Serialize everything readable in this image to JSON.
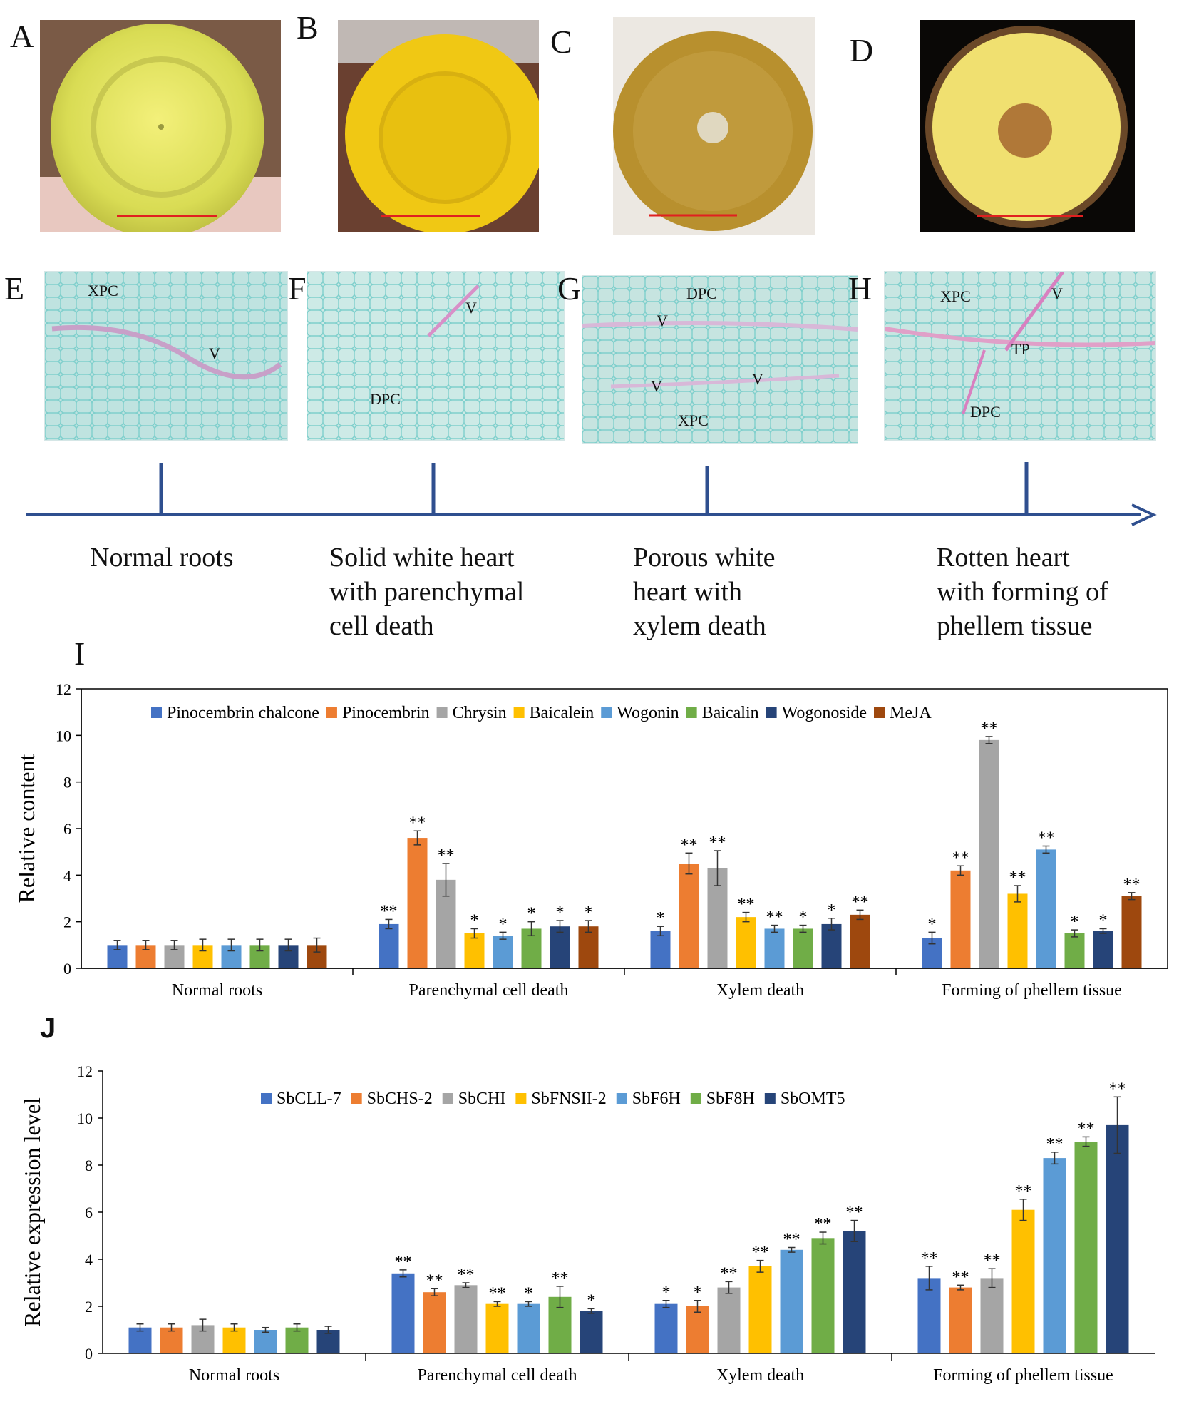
{
  "panels": {
    "photo_letters": [
      "A",
      "B",
      "C",
      "D"
    ],
    "micro_letters": [
      "E",
      "F",
      "G",
      "H"
    ],
    "chart_letters": [
      "I",
      "J"
    ]
  },
  "micrographs": {
    "E": [
      "XPC",
      "V"
    ],
    "F": [
      "V",
      "DPC"
    ],
    "G": [
      "DPC",
      "V",
      "V",
      "V",
      "XPC"
    ],
    "H": [
      "XPC",
      "V",
      "TP",
      "DPC"
    ]
  },
  "timeline": {
    "stages": [
      "Normal roots",
      "Solid white heart\nwith parenchymal\ncell death",
      "Porous white\nheart with\nxylem death",
      "Rotten heart\nwith forming of\nphellem tissue"
    ]
  },
  "colors": {
    "series": [
      "#4472C4",
      "#ED7D31",
      "#A5A5A5",
      "#FFC000",
      "#5B9BD5",
      "#70AD47",
      "#264478",
      "#9E480E"
    ],
    "timeline": "#2F4F8F",
    "scale_bar": "#E02020"
  },
  "chart_data": [
    {
      "type": "bar",
      "panel": "I",
      "title": "",
      "ylabel": "Relative content",
      "ylim": [
        0,
        12
      ],
      "yticks": [
        0,
        2,
        4,
        6,
        8,
        10,
        12
      ],
      "legend_position": "top",
      "categories": [
        "Normal roots",
        "Parenchymal cell death",
        "Xylem death",
        "Forming of phellem tissue"
      ],
      "series": [
        {
          "name": "Pinocembrin chalcone",
          "values": [
            1.0,
            1.9,
            1.6,
            1.3
          ],
          "errors": [
            0.2,
            0.2,
            0.2,
            0.25
          ],
          "sig": [
            "",
            "**",
            "*",
            "*"
          ]
        },
        {
          "name": "Pinocembrin",
          "values": [
            1.0,
            5.6,
            4.5,
            4.2
          ],
          "errors": [
            0.2,
            0.3,
            0.45,
            0.2
          ],
          "sig": [
            "",
            "**",
            "**",
            "**"
          ]
        },
        {
          "name": "Chrysin",
          "values": [
            1.0,
            3.8,
            4.3,
            9.8
          ],
          "errors": [
            0.2,
            0.7,
            0.75,
            0.15
          ],
          "sig": [
            "",
            "**",
            "**",
            "**"
          ]
        },
        {
          "name": "Baicalein",
          "values": [
            1.0,
            1.5,
            2.2,
            3.2
          ],
          "errors": [
            0.25,
            0.2,
            0.2,
            0.35
          ],
          "sig": [
            "",
            "*",
            "**",
            "**"
          ]
        },
        {
          "name": "Wogonin",
          "values": [
            1.0,
            1.4,
            1.7,
            5.1
          ],
          "errors": [
            0.25,
            0.15,
            0.15,
            0.15
          ],
          "sig": [
            "",
            "*",
            "**",
            "**"
          ]
        },
        {
          "name": "Baicalin",
          "values": [
            1.0,
            1.7,
            1.7,
            1.5
          ],
          "errors": [
            0.25,
            0.3,
            0.15,
            0.15
          ],
          "sig": [
            "",
            "*",
            "*",
            "*"
          ]
        },
        {
          "name": "Wogonoside",
          "values": [
            1.0,
            1.8,
            1.9,
            1.6
          ],
          "errors": [
            0.25,
            0.25,
            0.25,
            0.1
          ],
          "sig": [
            "",
            "*",
            "*",
            "*"
          ]
        },
        {
          "name": "MeJA",
          "values": [
            1.0,
            1.8,
            2.3,
            3.1
          ],
          "errors": [
            0.3,
            0.25,
            0.2,
            0.15
          ],
          "sig": [
            "",
            "*",
            "**",
            "**"
          ]
        }
      ]
    },
    {
      "type": "bar",
      "panel": "J",
      "title": "",
      "ylabel": "Relative expression level",
      "ylim": [
        0,
        12
      ],
      "yticks": [
        0,
        2,
        4,
        6,
        8,
        10,
        12
      ],
      "legend_position": "top",
      "categories": [
        "Normal roots",
        "Parenchymal cell death",
        "Xylem death",
        "Forming of phellem tissue"
      ],
      "series": [
        {
          "name": "SbCLL-7",
          "values": [
            1.1,
            3.4,
            2.1,
            3.2
          ],
          "errors": [
            0.15,
            0.15,
            0.15,
            0.5
          ],
          "sig": [
            "",
            "**",
            "*",
            "**"
          ]
        },
        {
          "name": "SbCHS-2",
          "values": [
            1.1,
            2.6,
            2.0,
            2.8
          ],
          "errors": [
            0.15,
            0.15,
            0.25,
            0.1
          ],
          "sig": [
            "",
            "**",
            "*",
            "**"
          ]
        },
        {
          "name": "SbCHI",
          "values": [
            1.2,
            2.9,
            2.8,
            3.2
          ],
          "errors": [
            0.25,
            0.1,
            0.25,
            0.4
          ],
          "sig": [
            "",
            "**",
            "**",
            "**"
          ]
        },
        {
          "name": "SbFNSII-2",
          "values": [
            1.1,
            2.1,
            3.7,
            6.1
          ],
          "errors": [
            0.15,
            0.1,
            0.25,
            0.45
          ],
          "sig": [
            "",
            "**",
            "**",
            "**"
          ]
        },
        {
          "name": "SbF6H",
          "values": [
            1.0,
            2.1,
            4.4,
            8.3
          ],
          "errors": [
            0.1,
            0.1,
            0.1,
            0.25
          ],
          "sig": [
            "",
            "*",
            "**",
            "**"
          ]
        },
        {
          "name": "SbF8H",
          "values": [
            1.1,
            2.4,
            4.9,
            9.0
          ],
          "errors": [
            0.15,
            0.45,
            0.25,
            0.2
          ],
          "sig": [
            "",
            "**",
            "**",
            "**"
          ]
        },
        {
          "name": "SbOMT5",
          "values": [
            1.0,
            1.8,
            5.2,
            9.7
          ],
          "errors": [
            0.15,
            0.1,
            0.45,
            1.2
          ],
          "sig": [
            "",
            "*",
            "**",
            "**"
          ]
        }
      ]
    }
  ]
}
